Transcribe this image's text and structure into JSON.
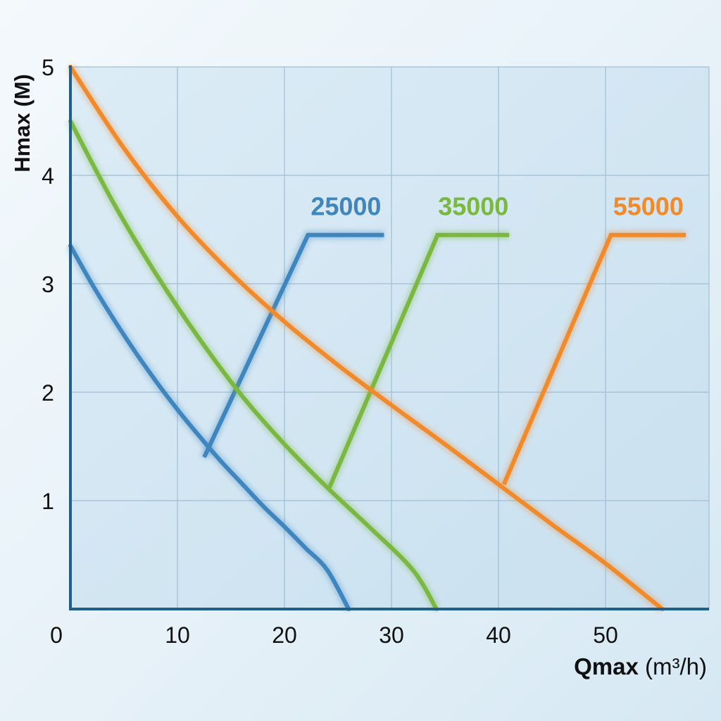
{
  "chart_data": {
    "type": "line",
    "xlabel_bold": "Qmax",
    "xlabel_unit": " (m³/h)",
    "ylabel": "Hmax (M)",
    "xlim": [
      0,
      60
    ],
    "ylim": [
      0,
      5
    ],
    "x_ticks": [
      0,
      10,
      20,
      30,
      40,
      50
    ],
    "y_ticks": [
      1,
      2,
      3,
      4,
      5
    ],
    "grid": true,
    "series": [
      {
        "name": "25000",
        "color": "#3f86bf",
        "curve": [
          [
            0,
            3.35
          ],
          [
            2,
            3.0
          ],
          [
            4,
            2.68
          ],
          [
            6,
            2.38
          ],
          [
            8,
            2.1
          ],
          [
            10,
            1.84
          ],
          [
            12,
            1.6
          ],
          [
            14,
            1.37
          ],
          [
            16,
            1.16
          ],
          [
            18,
            0.95
          ],
          [
            20,
            0.76
          ],
          [
            22,
            0.56
          ],
          [
            24,
            0.36
          ],
          [
            26,
            0.0
          ]
        ],
        "pointer": [
          [
            12.5,
            1.4
          ],
          [
            22.2,
            3.45
          ],
          [
            29.3,
            3.45
          ]
        ]
      },
      {
        "name": "35000",
        "color": "#7ab842",
        "curve": [
          [
            0,
            4.5
          ],
          [
            4,
            3.75
          ],
          [
            8,
            3.09
          ],
          [
            12,
            2.5
          ],
          [
            16,
            1.97
          ],
          [
            20,
            1.52
          ],
          [
            24,
            1.12
          ],
          [
            28,
            0.75
          ],
          [
            32,
            0.36
          ],
          [
            34.2,
            0.0
          ]
        ],
        "pointer": [
          [
            24.2,
            1.12
          ],
          [
            34.3,
            3.45
          ],
          [
            41,
            3.45
          ]
        ]
      },
      {
        "name": "55000",
        "color": "#f08a2a",
        "curve": [
          [
            0,
            5.0
          ],
          [
            5,
            4.25
          ],
          [
            10,
            3.62
          ],
          [
            15,
            3.1
          ],
          [
            20,
            2.65
          ],
          [
            25,
            2.25
          ],
          [
            30,
            1.88
          ],
          [
            35,
            1.52
          ],
          [
            40,
            1.15
          ],
          [
            45,
            0.78
          ],
          [
            50,
            0.42
          ],
          [
            55.3,
            0.0
          ]
        ],
        "pointer": [
          [
            40.5,
            1.15
          ],
          [
            50.5,
            3.45
          ],
          [
            57.5,
            3.45
          ]
        ]
      }
    ]
  }
}
